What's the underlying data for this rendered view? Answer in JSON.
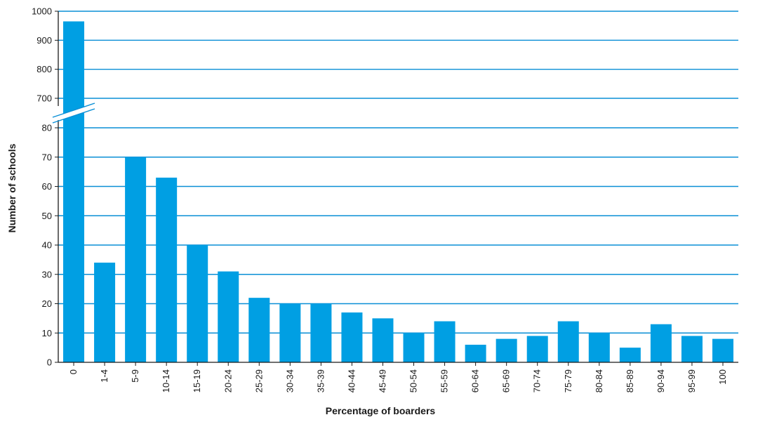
{
  "chart_data": {
    "type": "bar",
    "title": "",
    "xlabel": "Percentage of boarders",
    "ylabel": "Number of schools",
    "categories": [
      "0",
      "1-4",
      "5-9",
      "10-14",
      "15-19",
      "20-24",
      "25-29",
      "30-34",
      "35-39",
      "40-44",
      "45-49",
      "50-54",
      "55-59",
      "60-64",
      "65-69",
      "70-74",
      "75-79",
      "80-84",
      "85-89",
      "90-94",
      "95-99",
      "100"
    ],
    "values": [
      965,
      34,
      70,
      63,
      40,
      31,
      22,
      20,
      20,
      17,
      15,
      10,
      14,
      6,
      8,
      9,
      14,
      10,
      5,
      13,
      9,
      8
    ],
    "y_axis_break": {
      "below": [
        0,
        80
      ],
      "above": [
        700,
        1000
      ]
    },
    "yticks": [
      0,
      10,
      20,
      30,
      40,
      50,
      60,
      70,
      80,
      700,
      800,
      900,
      1000
    ],
    "ytick_labels": [
      "0",
      "10",
      "20",
      "30",
      "40",
      "50",
      "60",
      "70",
      "80",
      "700",
      "800",
      "900",
      "1000"
    ],
    "grid": true,
    "legend": "none",
    "bar_color": "#009fe3",
    "grid_color": "#0a8fd6"
  }
}
